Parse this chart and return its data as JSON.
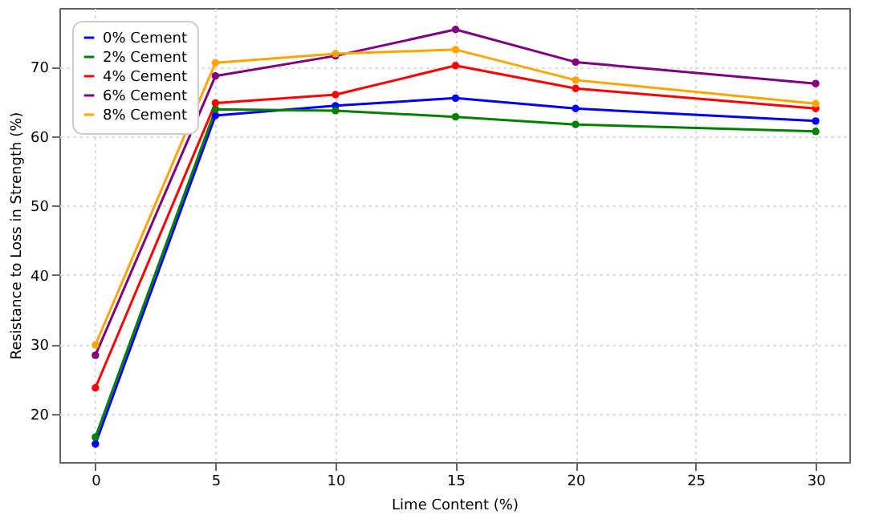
{
  "chart_data": {
    "type": "line",
    "xlabel": "Lime Content (%)",
    "ylabel": "Resistance to Loss in Strength (%)",
    "x": [
      0,
      5,
      10,
      15,
      20,
      30
    ],
    "series": [
      {
        "name": "0% Cement",
        "color": "#0000ff",
        "values": [
          15.6,
          63.0,
          64.4,
          65.5,
          64.0,
          62.2
        ]
      },
      {
        "name": "2% Cement",
        "color": "#008000",
        "values": [
          16.6,
          63.9,
          63.7,
          62.8,
          61.7,
          60.7
        ]
      },
      {
        "name": "4% Cement",
        "color": "#ff0000",
        "values": [
          23.7,
          64.8,
          66.0,
          70.2,
          66.9,
          64.0
        ]
      },
      {
        "name": "6% Cement",
        "color": "#800080",
        "values": [
          28.4,
          68.7,
          71.6,
          75.4,
          70.7,
          67.6
        ]
      },
      {
        "name": "8% Cement",
        "color": "#ffa500",
        "values": [
          29.9,
          70.6,
          71.9,
          72.5,
          68.1,
          64.7
        ]
      }
    ],
    "xlim": [
      -1.5,
      31.4
    ],
    "xticks": [
      0,
      5,
      10,
      15,
      20,
      25,
      30
    ],
    "ylim": [
      13,
      78.5
    ],
    "yticks": [
      20,
      30,
      40,
      50,
      60,
      70
    ],
    "grid": true,
    "legend": "top left",
    "marker": "circle",
    "line_style": "solid"
  }
}
